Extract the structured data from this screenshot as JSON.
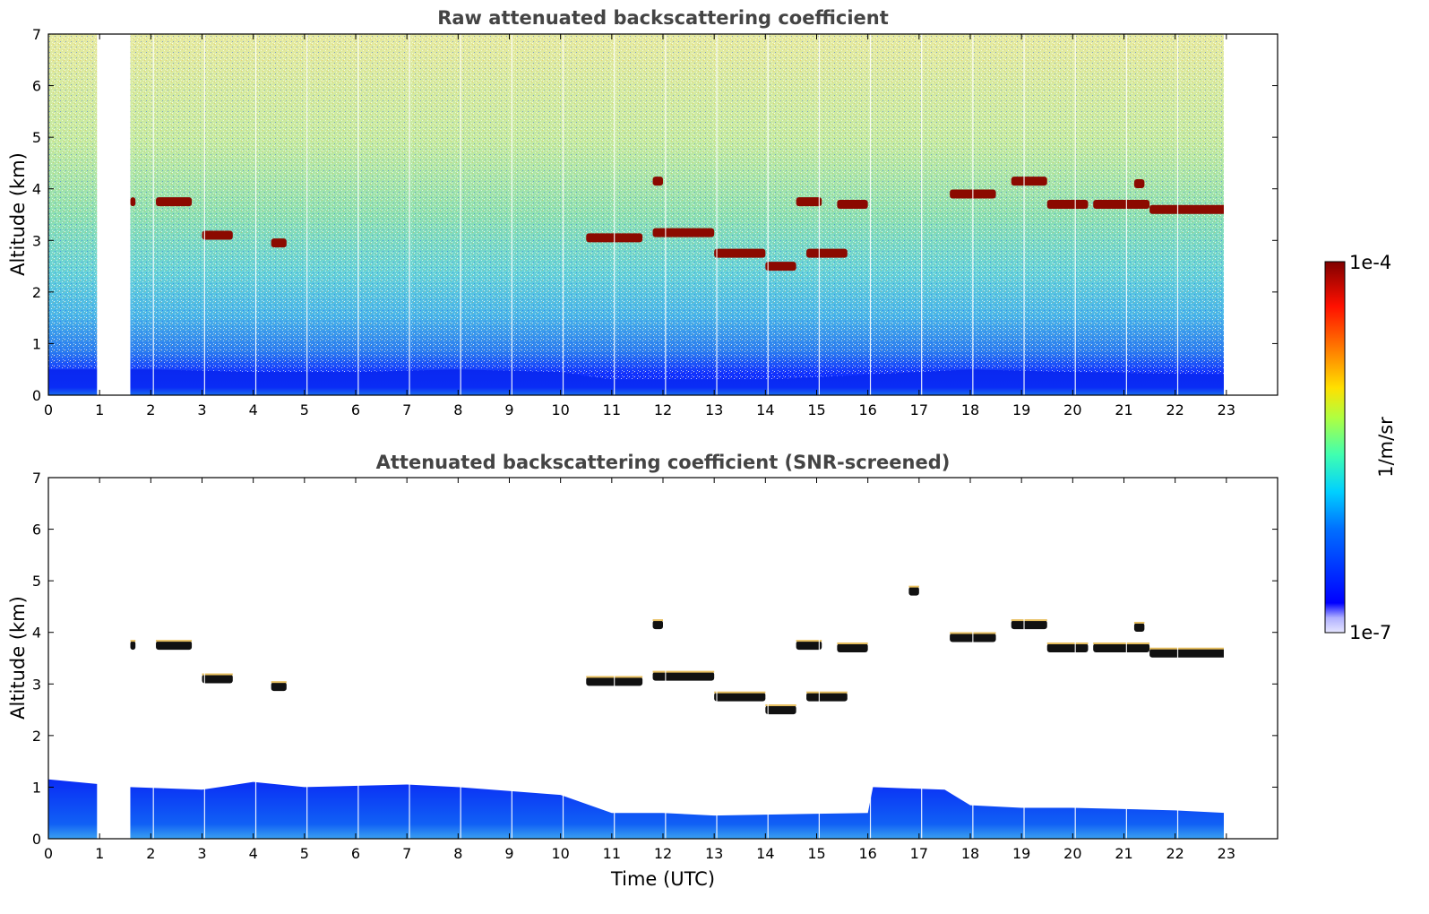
{
  "chart_data": [
    {
      "type": "heatmap",
      "title": "Raw attenuated backscattering coefficient",
      "xlabel": "",
      "ylabel": "Altitude (km)",
      "xlim": [
        0,
        24
      ],
      "ylim": [
        0,
        7
      ],
      "xticks": [
        "0",
        "1",
        "2",
        "3",
        "4",
        "5",
        "6",
        "7",
        "8",
        "9",
        "10",
        "11",
        "12",
        "13",
        "14",
        "15",
        "16",
        "17",
        "18",
        "19",
        "20",
        "21",
        "22",
        "23"
      ],
      "yticks": [
        "0",
        "1",
        "2",
        "3",
        "4",
        "5",
        "6",
        "7"
      ],
      "data_end_hour": 22.95,
      "gaps_hours": [
        [
          0.95,
          1.6
        ]
      ],
      "boundary_layer_top_km": [
        [
          0,
          0.5
        ],
        [
          2,
          0.5
        ],
        [
          4,
          0.45
        ],
        [
          6,
          0.45
        ],
        [
          8,
          0.5
        ],
        [
          10,
          0.45
        ],
        [
          11,
          0.3
        ],
        [
          14,
          0.3
        ],
        [
          16,
          0.4
        ],
        [
          18,
          0.5
        ],
        [
          20,
          0.45
        ],
        [
          23,
          0.4
        ]
      ],
      "cloud_layers": [
        {
          "x": [
            1.6,
            1.7
          ],
          "y": 3.75
        },
        {
          "x": [
            2.1,
            2.8
          ],
          "y": 3.75
        },
        {
          "x": [
            3.0,
            3.6
          ],
          "y": 3.1
        },
        {
          "x": [
            4.35,
            4.65
          ],
          "y": 2.95
        },
        {
          "x": [
            10.5,
            11.6
          ],
          "y": 3.05
        },
        {
          "x": [
            11.8,
            13.0
          ],
          "y": 3.15
        },
        {
          "x": [
            13.0,
            14.0
          ],
          "y": 2.75
        },
        {
          "x": [
            14.0,
            14.6
          ],
          "y": 2.5
        },
        {
          "x": [
            14.8,
            15.6
          ],
          "y": 2.75
        },
        {
          "x": [
            14.6,
            15.1
          ],
          "y": 3.75
        },
        {
          "x": [
            15.4,
            16.0
          ],
          "y": 3.7
        },
        {
          "x": [
            11.8,
            12.0
          ],
          "y": 4.15
        },
        {
          "x": [
            17.6,
            18.5
          ],
          "y": 3.9
        },
        {
          "x": [
            18.8,
            19.5
          ],
          "y": 4.15
        },
        {
          "x": [
            19.5,
            20.3
          ],
          "y": 3.7
        },
        {
          "x": [
            20.4,
            21.5
          ],
          "y": 3.7
        },
        {
          "x": [
            21.5,
            23.0
          ],
          "y": 3.6
        },
        {
          "x": [
            21.2,
            21.4
          ],
          "y": 4.1
        }
      ]
    },
    {
      "type": "heatmap",
      "title": "Attenuated backscattering coefficient (SNR-screened)",
      "xlabel": "Time (UTC)",
      "ylabel": "Altitude (km)",
      "xlim": [
        0,
        24
      ],
      "ylim": [
        0,
        7
      ],
      "xticks": [
        "0",
        "1",
        "2",
        "3",
        "4",
        "5",
        "6",
        "7",
        "8",
        "9",
        "10",
        "11",
        "12",
        "13",
        "14",
        "15",
        "16",
        "17",
        "18",
        "19",
        "20",
        "21",
        "22",
        "23"
      ],
      "yticks": [
        "0",
        "1",
        "2",
        "3",
        "4",
        "5",
        "6",
        "7"
      ],
      "data_end_hour": 22.95,
      "gaps_hours": [
        [
          0.95,
          1.6
        ]
      ],
      "boundary_layer_top_km": [
        [
          0,
          1.15
        ],
        [
          1.6,
          1.0
        ],
        [
          3,
          0.95
        ],
        [
          4,
          1.1
        ],
        [
          5,
          1.0
        ],
        [
          7,
          1.05
        ],
        [
          8,
          1.0
        ],
        [
          10,
          0.85
        ],
        [
          11,
          0.5
        ],
        [
          12,
          0.5
        ],
        [
          13,
          0.45
        ],
        [
          16,
          0.5
        ],
        [
          16.1,
          1.0
        ],
        [
          17.5,
          0.95
        ],
        [
          18,
          0.65
        ],
        [
          19,
          0.6
        ],
        [
          20,
          0.6
        ],
        [
          22,
          0.55
        ],
        [
          23,
          0.5
        ]
      ],
      "cloud_layers": [
        {
          "x": [
            1.6,
            1.7
          ],
          "y": 3.75
        },
        {
          "x": [
            2.1,
            2.8
          ],
          "y": 3.75
        },
        {
          "x": [
            3.0,
            3.6
          ],
          "y": 3.1
        },
        {
          "x": [
            4.35,
            4.65
          ],
          "y": 2.95
        },
        {
          "x": [
            10.5,
            11.6
          ],
          "y": 3.05
        },
        {
          "x": [
            11.8,
            13.0
          ],
          "y": 3.15
        },
        {
          "x": [
            13.0,
            14.0
          ],
          "y": 2.75
        },
        {
          "x": [
            14.0,
            14.6
          ],
          "y": 2.5
        },
        {
          "x": [
            14.8,
            15.6
          ],
          "y": 2.75
        },
        {
          "x": [
            14.6,
            15.1
          ],
          "y": 3.75
        },
        {
          "x": [
            15.4,
            16.0
          ],
          "y": 3.7
        },
        {
          "x": [
            11.8,
            12.0
          ],
          "y": 4.15
        },
        {
          "x": [
            16.8,
            17.0
          ],
          "y": 4.8
        },
        {
          "x": [
            17.6,
            18.5
          ],
          "y": 3.9
        },
        {
          "x": [
            18.8,
            19.5
          ],
          "y": 4.15
        },
        {
          "x": [
            19.5,
            20.3
          ],
          "y": 3.7
        },
        {
          "x": [
            20.4,
            21.5
          ],
          "y": 3.7
        },
        {
          "x": [
            21.5,
            23.0
          ],
          "y": 3.6
        },
        {
          "x": [
            21.2,
            21.4
          ],
          "y": 4.1
        }
      ]
    }
  ],
  "colorbar": {
    "label": "1/m/sr",
    "min_label": "1e-7",
    "max_label": "1e-4",
    "colormap": "jet",
    "colors": [
      "#e6e6ff",
      "#0000ff",
      "#0080ff",
      "#00d0ff",
      "#40ffb0",
      "#b0ff40",
      "#ffe000",
      "#ff8000",
      "#ff1000",
      "#800000"
    ]
  }
}
